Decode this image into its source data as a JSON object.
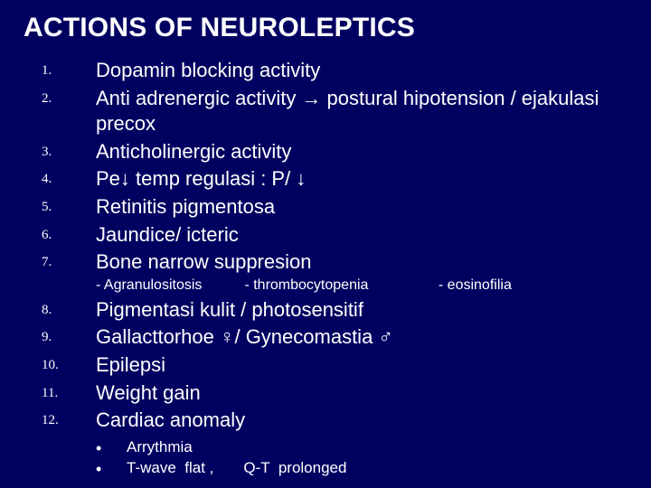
{
  "background_color": "#000060",
  "text_color": "#ffffff",
  "title": "ACTIONS OF NEUROLEPTICS",
  "title_fontsize": 30,
  "item_fontsize": 22,
  "number_fontsize": 15,
  "sub_fontsize": 16,
  "bullet_fontsize": 17,
  "items": {
    "n1": "1.",
    "t1": "Dopamin blocking activity",
    "n2": "2.",
    "t2": "Anti adrenergic activity → postural  hipotension / ejakulasi precox",
    "n3": "3.",
    "t3": "Anticholinergic activity",
    "n4": "4.",
    "t4": "Pe↓ temp regulasi : P/ ↓",
    "n5": "5.",
    "t5": "Retinitis pigmentosa",
    "n6": "6.",
    "t6": "Jaundice/ icteric",
    "n7": "7.",
    "t7": "Bone narrow suppresion",
    "n8": "8.",
    "t8": "Pigmentasi kulit / photosensitif",
    "n9": "9.",
    "t9": "Gallacttorhoe ♀/ Gynecomastia ♂",
    "n10": "10.",
    "t10": "Epilepsi",
    "n11": "11.",
    "t11": "Weight gain",
    "n12": "12.",
    "t12": "Cardiac anomaly"
  },
  "sub7": {
    "a": "- Agranulositosis",
    "b": "- thrombocytopenia",
    "c": "- eosinofilia"
  },
  "bullets12": {
    "a": "Arrythmia",
    "b": "T-wave  flat ,       Q-T  prolonged"
  }
}
